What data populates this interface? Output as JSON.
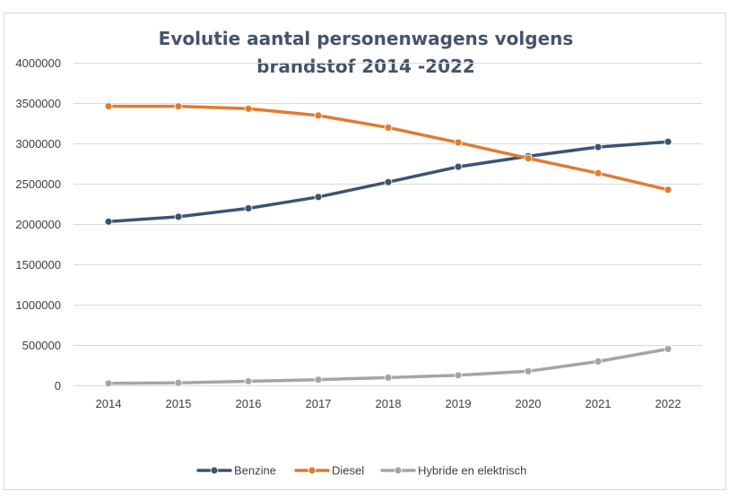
{
  "chart_data": {
    "type": "line",
    "title_lines": [
      "Evolutie aantal personenwagens volgens",
      "brandstof 2014 -2022"
    ],
    "x": [
      "2014",
      "2015",
      "2016",
      "2017",
      "2018",
      "2019",
      "2020",
      "2021",
      "2022"
    ],
    "ylim": [
      0,
      4000000
    ],
    "yticks": [
      "0",
      "500000",
      "1000000",
      "1500000",
      "2000000",
      "2500000",
      "3000000",
      "3500000",
      "4000000"
    ],
    "grid": true,
    "legend_position": "bottom",
    "series": [
      {
        "name": "Benzine",
        "color": "#3a5472",
        "values": [
          2030000,
          2090000,
          2195000,
          2335000,
          2520000,
          2710000,
          2840000,
          2955000,
          3020000
        ]
      },
      {
        "name": "Diesel",
        "color": "#e07b32",
        "values": [
          3460000,
          3460000,
          3430000,
          3345000,
          3195000,
          3010000,
          2815000,
          2630000,
          2425000
        ]
      },
      {
        "name": "Hybride en elektrisch",
        "color": "#a5a5a5",
        "values": [
          25000,
          30000,
          50000,
          70000,
          95000,
          125000,
          175000,
          295000,
          450000
        ]
      }
    ]
  }
}
